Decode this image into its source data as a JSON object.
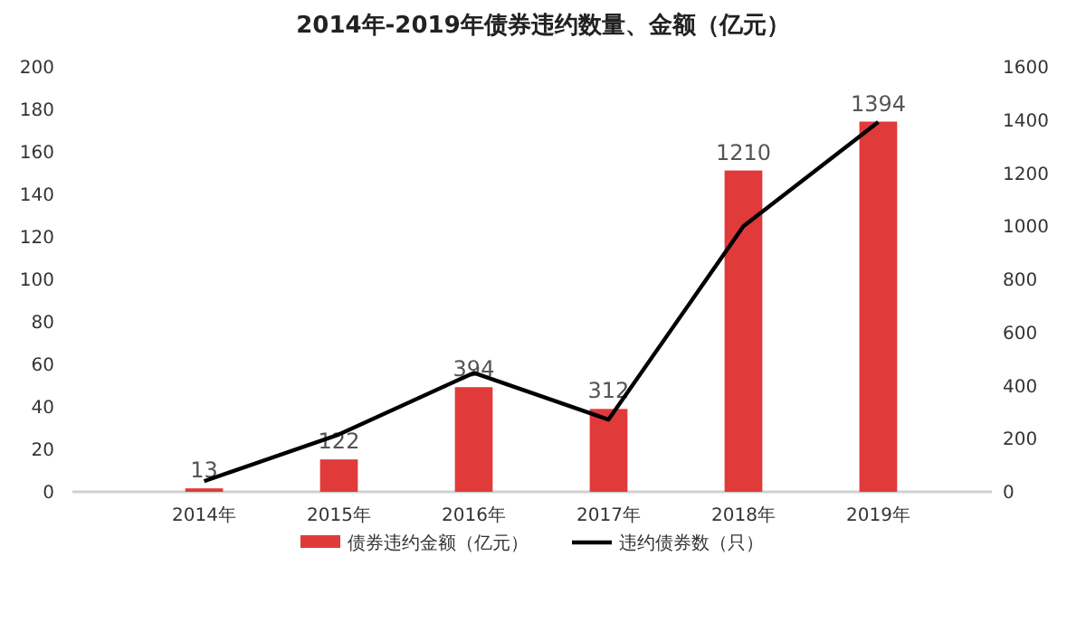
{
  "chart_data": {
    "type": "bar",
    "title": "2014年-2019年债券违约数量、金额（亿元）",
    "categories": [
      "2014年",
      "2015年",
      "2016年",
      "2017年",
      "2018年",
      "2019年"
    ],
    "series": [
      {
        "name": "债券违约金额（亿元）",
        "axis": "y2",
        "color": "#e03a3a",
        "values": [
          13,
          122,
          394,
          312,
          1210,
          1394
        ],
        "value_labels": [
          "13",
          "122",
          "394",
          "312",
          "1210",
          "1394"
        ]
      },
      {
        "name": "违约债券数（只）",
        "type": "line",
        "color": "#000000",
        "values": [
          5,
          27,
          56,
          34,
          125,
          174
        ]
      }
    ],
    "ylim": [
      0,
      200
    ],
    "yticks": [
      0,
      20,
      40,
      60,
      80,
      100,
      120,
      140,
      160,
      180,
      200
    ],
    "y2lim": [
      0,
      1600
    ],
    "y2ticks": [
      0,
      200,
      400,
      600,
      800,
      1000,
      1200,
      1400,
      1600
    ],
    "legend": "bottom",
    "grid": false,
    "marker": "none",
    "line_style": "solid"
  }
}
